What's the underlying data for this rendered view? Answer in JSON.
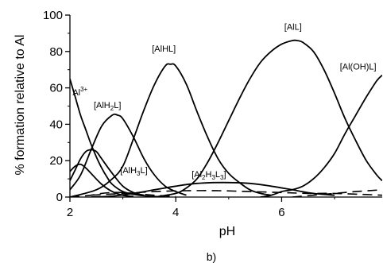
{
  "chart_data": {
    "type": "line",
    "xlabel": "pH",
    "ylabel": "% formation relative to Al",
    "panel_label": "b)",
    "xlim": [
      2,
      7.9
    ],
    "ylim": [
      0,
      100
    ],
    "xticks": [
      "2",
      "4",
      "6"
    ],
    "yticks": [
      "0",
      "20",
      "40",
      "60",
      "80",
      "100"
    ],
    "grid": false,
    "series": [
      {
        "name": "Al3+",
        "style": "solid",
        "x": [
          2.0,
          2.1,
          2.2,
          2.3,
          2.4,
          2.5,
          2.6,
          2.7,
          2.8,
          3.0,
          3.2,
          3.4,
          3.6,
          3.8
        ],
        "y": [
          65,
          55,
          45,
          37,
          29,
          22,
          16,
          11,
          7,
          3,
          1.5,
          0.7,
          0.3,
          0.1
        ]
      },
      {
        "name": "",
        "style": "solid",
        "x": [
          2.0,
          2.1,
          2.2,
          2.3,
          2.4,
          2.5,
          2.6,
          2.8,
          3.0,
          3.2,
          3.4
        ],
        "y": [
          9,
          15,
          21,
          25,
          26,
          25,
          21,
          13,
          6,
          2.5,
          1
        ]
      },
      {
        "name": "",
        "style": "solid",
        "x": [
          2.0,
          2.1,
          2.2,
          2.3,
          2.4,
          2.6,
          2.8,
          3.0,
          3.2
        ],
        "y": [
          14,
          17,
          18,
          16,
          13,
          7,
          3,
          1,
          0.3
        ]
      },
      {
        "name": "[AlH2L]",
        "style": "solid",
        "x": [
          2.0,
          2.2,
          2.4,
          2.6,
          2.8,
          2.9,
          3.0,
          3.2,
          3.4,
          3.6,
          3.8,
          4.0,
          4.2
        ],
        "y": [
          4,
          12,
          26,
          39,
          45,
          45,
          43,
          33,
          21,
          12,
          6,
          3,
          1
        ]
      },
      {
        "name": "[AlH3L]",
        "style": "dashed",
        "x": [
          2.0,
          2.2,
          2.4,
          2.6,
          2.8,
          3.0,
          3.3,
          3.6,
          4.0
        ],
        "y": [
          0,
          0.5,
          1,
          2,
          2.5,
          2.5,
          1.8,
          1,
          0.3
        ]
      },
      {
        "name": "[AlHL]",
        "style": "solid",
        "x": [
          2.0,
          2.5,
          2.8,
          3.0,
          3.2,
          3.4,
          3.6,
          3.8,
          3.9,
          4.0,
          4.2,
          4.4,
          4.6,
          4.8,
          5.0,
          5.2,
          5.4,
          5.6,
          5.8
        ],
        "y": [
          0,
          4,
          10,
          17,
          32,
          48,
          62,
          72,
          73,
          72,
          62,
          47,
          33,
          21,
          13,
          8,
          4,
          2,
          1
        ]
      },
      {
        "name": "[AlL]",
        "style": "solid",
        "x": [
          3.6,
          4.0,
          4.2,
          4.4,
          4.6,
          4.8,
          5.0,
          5.2,
          5.4,
          5.6,
          5.8,
          6.0,
          6.2,
          6.3,
          6.4,
          6.6,
          6.8,
          7.0,
          7.2,
          7.4,
          7.6,
          7.8,
          7.9
        ],
        "y": [
          0,
          2,
          5,
          10,
          19,
          30,
          42,
          54,
          65,
          74,
          80,
          84,
          86,
          86,
          85,
          80,
          70,
          57,
          43,
          31,
          20,
          12,
          9
        ]
      },
      {
        "name": "[Al(OH)L]",
        "style": "solid",
        "x": [
          5.6,
          5.8,
          6.0,
          6.2,
          6.4,
          6.6,
          6.8,
          7.0,
          7.2,
          7.4,
          7.6,
          7.8,
          7.9
        ],
        "y": [
          0,
          1,
          3,
          4,
          6,
          10,
          16,
          24,
          35,
          45,
          55,
          64,
          67
        ]
      },
      {
        "name": "[Al2H3L3]",
        "style": "solid",
        "x": [
          2.4,
          2.8,
          3.2,
          3.6,
          4.0,
          4.4,
          4.9,
          5.4,
          5.8,
          6.2,
          6.6,
          7.0
        ],
        "y": [
          0,
          0.5,
          2,
          4,
          6,
          7.5,
          8,
          7.5,
          6,
          4,
          2,
          1
        ]
      },
      {
        "name": "",
        "style": "dashed",
        "x": [
          2.4,
          3.0,
          3.6,
          4.2,
          4.8,
          5.4,
          6.0,
          6.5,
          7.0,
          7.5,
          7.9
        ],
        "y": [
          1,
          2,
          3,
          3.5,
          3.5,
          3,
          2.5,
          2,
          2,
          1.5,
          1
        ]
      },
      {
        "name": "",
        "style": "dashed",
        "x": [
          6.2,
          6.6,
          7.0,
          7.4,
          7.9
        ],
        "y": [
          0,
          1,
          2,
          3,
          4
        ]
      }
    ],
    "annotations": [
      {
        "text": "Al",
        "sup": "3+",
        "x": 2.05,
        "y": 56
      },
      {
        "text": "[AlH",
        "sub": "2",
        "text2": "L]",
        "x": 2.45,
        "y": 49
      },
      {
        "text": "[AlH",
        "sub": "3",
        "text2": "L]",
        "x": 2.95,
        "y": 13
      },
      {
        "text": "[AlHL]",
        "x": 3.55,
        "y": 80
      },
      {
        "text": "[Al",
        "sub": "2",
        "text2": "H",
        "sub2": "3",
        "text3": "L",
        "sub3": "3",
        "text4": "]",
        "x": 4.3,
        "y": 11
      },
      {
        "text": "[AlL]",
        "x": 6.05,
        "y": 92
      },
      {
        "text": "[Al(OH)L]",
        "x": 7.1,
        "y": 70
      }
    ]
  }
}
